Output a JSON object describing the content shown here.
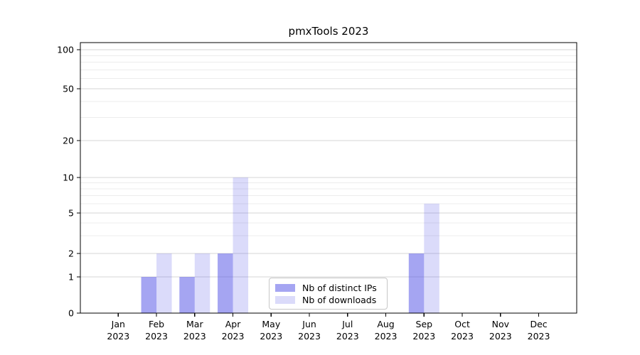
{
  "figure": {
    "title": "pmxTools 2023"
  },
  "chart_data": {
    "type": "bar",
    "title": "pmxTools 2023",
    "categories": [
      {
        "month": "Jan",
        "year": "2023"
      },
      {
        "month": "Feb",
        "year": "2023"
      },
      {
        "month": "Mar",
        "year": "2023"
      },
      {
        "month": "Apr",
        "year": "2023"
      },
      {
        "month": "May",
        "year": "2023"
      },
      {
        "month": "Jun",
        "year": "2023"
      },
      {
        "month": "Jul",
        "year": "2023"
      },
      {
        "month": "Aug",
        "year": "2023"
      },
      {
        "month": "Sep",
        "year": "2023"
      },
      {
        "month": "Oct",
        "year": "2023"
      },
      {
        "month": "Nov",
        "year": "2023"
      },
      {
        "month": "Dec",
        "year": "2023"
      }
    ],
    "series": [
      {
        "name": "Nb of distinct IPs",
        "color": "rgba(76,76,230,0.5)",
        "values": [
          0,
          1,
          1,
          2,
          0,
          0,
          0,
          0,
          2,
          0,
          0,
          0
        ]
      },
      {
        "name": "Nb of downloads",
        "color": "rgba(76,76,230,0.2)",
        "values": [
          0,
          2,
          2,
          10,
          0,
          0,
          0,
          0,
          6,
          0,
          0,
          0
        ]
      }
    ],
    "y_axis": {
      "scale": "pseudo-log",
      "ticks": [
        0,
        1,
        2,
        5,
        10,
        20,
        50,
        100
      ],
      "minor_gridlines": [
        3,
        4,
        6,
        7,
        8,
        9,
        30,
        40,
        60,
        70,
        80,
        90
      ],
      "ylim": [
        0,
        114
      ]
    },
    "xlabel": "",
    "ylabel": "",
    "grid": true,
    "legend_position": "inside-bottom-center"
  }
}
